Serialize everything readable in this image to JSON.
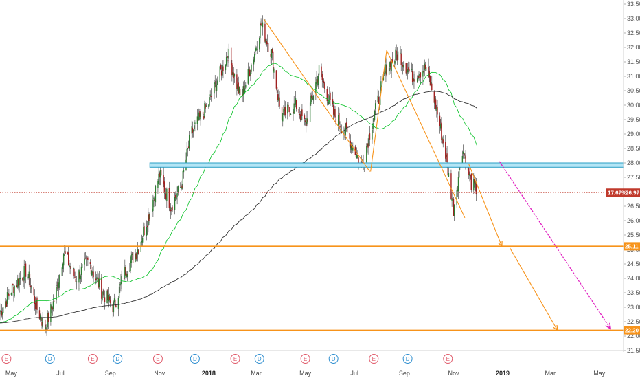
{
  "chart_data": {
    "type": "candlestick",
    "x_axis": {
      "labels": [
        "May",
        "Jul",
        "Sep",
        "Nov",
        "2018",
        "Mar",
        "May",
        "Jul",
        "Sep",
        "Nov",
        "2019",
        "Mar",
        "May"
      ],
      "bold": [
        "2018",
        "2019"
      ],
      "start": "2017-04-17",
      "end": "2019-05-31"
    },
    "y_axis": {
      "min": 21.5,
      "max": 33.5,
      "ticks": [
        21.5,
        22.0,
        22.5,
        23.0,
        23.5,
        24.0,
        24.5,
        25.0,
        25.5,
        26.0,
        26.5,
        27.0,
        27.5,
        28.0,
        28.5,
        29.0,
        29.5,
        30.0,
        30.5,
        31.0,
        31.5,
        32.0,
        32.5,
        33.0,
        33.5
      ]
    },
    "price_path": [
      [
        "2017-04-17",
        22.8
      ],
      [
        "2017-05-01",
        23.6
      ],
      [
        "2017-05-20",
        24.3
      ],
      [
        "2017-06-01",
        23.0
      ],
      [
        "2017-06-12",
        22.3
      ],
      [
        "2017-06-25",
        23.4
      ],
      [
        "2017-07-05",
        24.9
      ],
      [
        "2017-07-20",
        24.0
      ],
      [
        "2017-08-05",
        24.6
      ],
      [
        "2017-08-20",
        23.6
      ],
      [
        "2017-09-05",
        23.0
      ],
      [
        "2017-09-20",
        24.3
      ],
      [
        "2017-10-05",
        25.0
      ],
      [
        "2017-10-20",
        26.3
      ],
      [
        "2017-11-01",
        27.6
      ],
      [
        "2017-11-15",
        26.5
      ],
      [
        "2017-11-28",
        27.2
      ],
      [
        "2017-12-10",
        29.0
      ],
      [
        "2017-12-31",
        30.0
      ],
      [
        "2018-01-25",
        31.8
      ],
      [
        "2018-02-10",
        30.2
      ],
      [
        "2018-02-25",
        31.6
      ],
      [
        "2018-03-07",
        32.8
      ],
      [
        "2018-03-20",
        31.8
      ],
      [
        "2018-04-01",
        29.6
      ],
      [
        "2018-04-20",
        30.0
      ],
      [
        "2018-05-01",
        29.3
      ],
      [
        "2018-05-18",
        31.2
      ],
      [
        "2018-06-05",
        29.7
      ],
      [
        "2018-06-22",
        29.0
      ],
      [
        "2018-07-10",
        27.9
      ],
      [
        "2018-07-25",
        29.6
      ],
      [
        "2018-08-10",
        31.3
      ],
      [
        "2018-08-25",
        31.8
      ],
      [
        "2018-09-10",
        31.0
      ],
      [
        "2018-09-28",
        31.3
      ],
      [
        "2018-10-10",
        30.0
      ],
      [
        "2018-10-22",
        28.3
      ],
      [
        "2018-11-01",
        26.4
      ],
      [
        "2018-11-12",
        28.5
      ],
      [
        "2018-11-23",
        27.3
      ],
      [
        "2018-12-01",
        26.97
      ]
    ],
    "moving_averages": [
      {
        "color": "#00c020",
        "period": 50
      },
      {
        "color": "#303030",
        "period": 200
      }
    ],
    "horizontal_levels": [
      {
        "price": 25.11,
        "label": "25.11",
        "color": "#f7931a"
      },
      {
        "price": 22.2,
        "label": "22.20",
        "color": "#f7931a"
      }
    ],
    "current_price": {
      "price": 26.97,
      "label": "26.97",
      "change_label": "17.67%",
      "color": "#c0392b"
    },
    "resistance_zone": {
      "low": 27.85,
      "high": 28.0,
      "from": "2017-10-20",
      "to": "2019-05-31"
    },
    "trend_lines": [
      {
        "color": "#f7931a",
        "points": [
          [
            "2018-03-10",
            33.0
          ],
          [
            "2018-07-20",
            27.7
          ]
        ]
      },
      {
        "color": "#f7931a",
        "points": [
          [
            "2018-08-10",
            31.9
          ],
          [
            "2018-07-21",
            27.7
          ]
        ]
      },
      {
        "color": "#f7931a",
        "points": [
          [
            "2018-08-10",
            31.9
          ],
          [
            "2018-11-15",
            26.1
          ]
        ]
      },
      {
        "color": "#f7931a",
        "points": [
          [
            "2018-11-20",
            27.95
          ],
          [
            "2018-12-31",
            25.11
          ]
        ],
        "arrow": true
      },
      {
        "color": "#f7931a",
        "points": [
          [
            "2019-01-10",
            25.05
          ],
          [
            "2019-03-10",
            22.2
          ]
        ],
        "arrow": true
      },
      {
        "color": "#e020c0",
        "dashed": true,
        "points": [
          [
            "2018-12-28",
            28.05
          ],
          [
            "2019-05-15",
            22.25
          ]
        ],
        "arrow": true
      }
    ],
    "events": [
      {
        "label": "E",
        "date": "2017-04-25",
        "color": "#e05a6a"
      },
      {
        "label": "D",
        "date": "2017-06-18",
        "color": "#2f8fd0"
      },
      {
        "label": "E",
        "date": "2017-08-10",
        "color": "#e05a6a"
      },
      {
        "label": "D",
        "date": "2017-09-10",
        "color": "#2f8fd0"
      },
      {
        "label": "E",
        "date": "2017-10-30",
        "color": "#e05a6a"
      },
      {
        "label": "D",
        "date": "2017-12-15",
        "color": "#2f8fd0"
      },
      {
        "label": "E",
        "date": "2018-02-03",
        "color": "#e05a6a"
      },
      {
        "label": "D",
        "date": "2018-03-05",
        "color": "#2f8fd0"
      },
      {
        "label": "E",
        "date": "2018-05-01",
        "color": "#e05a6a"
      },
      {
        "label": "D",
        "date": "2018-06-05",
        "color": "#2f8fd0"
      },
      {
        "label": "E",
        "date": "2018-07-25",
        "color": "#e05a6a"
      },
      {
        "label": "D",
        "date": "2018-09-05",
        "color": "#2f8fd0"
      },
      {
        "label": "E",
        "date": "2018-10-25",
        "color": "#e05a6a"
      }
    ]
  }
}
